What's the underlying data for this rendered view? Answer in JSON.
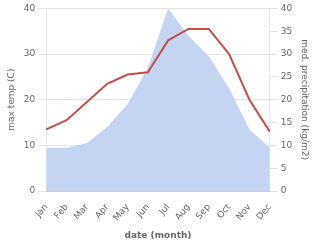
{
  "chart_data": {
    "type": "line",
    "xlabel": "date (month)",
    "ylabel": "max temp (C)",
    "y2label": "med. precipitation (kg/m2)",
    "categories": [
      "Jan",
      "Feb",
      "Mar",
      "Apr",
      "May",
      "Jun",
      "Jul",
      "Aug",
      "Sep",
      "Oct",
      "Nov",
      "Dec"
    ],
    "series": [
      {
        "type": "area",
        "axis": "y2",
        "color": "#c5d4f0",
        "values": [
          9.5,
          9.5,
          10.5,
          14.0,
          19.0,
          27.0,
          40.0,
          34.0,
          29.5,
          22.5,
          13.5,
          9.5
        ]
      },
      {
        "type": "line",
        "color": "#c0504d",
        "values": [
          13.5,
          15.5,
          19.5,
          23.5,
          25.5,
          26.0,
          33.0,
          35.5,
          35.5,
          30.0,
          20.0,
          13.0
        ]
      }
    ],
    "ylim": [
      0,
      40
    ],
    "yticks": [
      0,
      10,
      20,
      30,
      40
    ],
    "y2lim": [
      0,
      40
    ],
    "y2ticks": [
      0,
      5,
      10,
      15,
      20,
      25,
      30,
      35,
      40
    ],
    "grid": true
  }
}
